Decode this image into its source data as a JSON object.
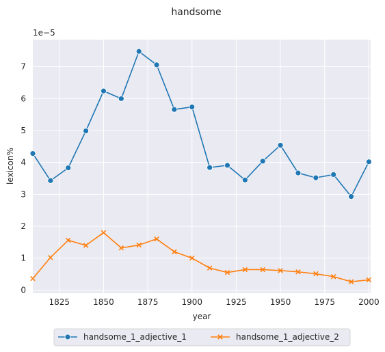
{
  "chart_data": {
    "type": "line",
    "title": "handsome",
    "xlabel": "year",
    "ylabel": "lexicon%",
    "y_exponent_label": "1e−5",
    "xlim": [
      1810,
      2001
    ],
    "ylim": [
      -0.1,
      7.85
    ],
    "x_ticks": [
      1825,
      1850,
      1875,
      1900,
      1925,
      1950,
      1975,
      2000
    ],
    "y_ticks": [
      0,
      1,
      2,
      3,
      4,
      5,
      6,
      7
    ],
    "grid": true,
    "legend_position": "bottom-center",
    "x": [
      1810,
      1820,
      1830,
      1840,
      1850,
      1860,
      1870,
      1880,
      1890,
      1900,
      1910,
      1920,
      1930,
      1940,
      1950,
      1960,
      1970,
      1980,
      1990,
      2000
    ],
    "series": [
      {
        "name": "handsome_1_adjective_1",
        "marker": "circle",
        "color": "#1f77b4",
        "values": [
          4.28,
          3.43,
          3.83,
          4.99,
          6.24,
          6.0,
          7.48,
          7.06,
          5.66,
          5.74,
          3.84,
          3.91,
          3.45,
          4.04,
          4.54,
          3.67,
          3.52,
          3.62,
          2.93,
          4.02
        ]
      },
      {
        "name": "handsome_1_adjective_2",
        "marker": "x",
        "color": "#ff7f0e",
        "values": [
          0.36,
          1.02,
          1.56,
          1.4,
          1.8,
          1.32,
          1.41,
          1.6,
          1.2,
          1.0,
          0.69,
          0.55,
          0.64,
          0.64,
          0.61,
          0.57,
          0.51,
          0.42,
          0.26,
          0.32
        ]
      }
    ]
  }
}
